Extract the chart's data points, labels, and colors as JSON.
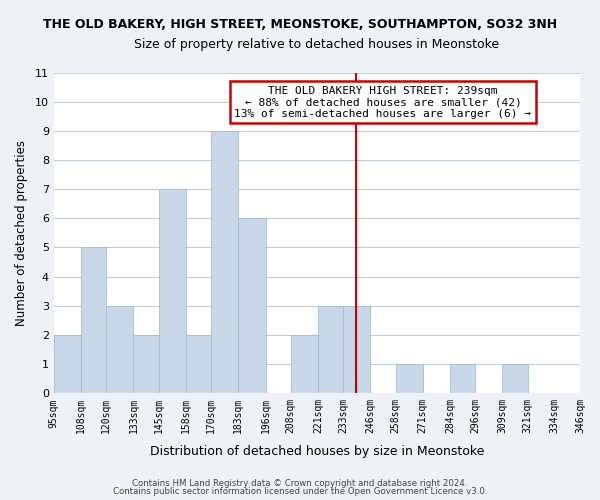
{
  "title": "THE OLD BAKERY, HIGH STREET, MEONSTOKE, SOUTHAMPTON, SO32 3NH",
  "subtitle": "Size of property relative to detached houses in Meonstoke",
  "xlabel": "Distribution of detached houses by size in Meonstoke",
  "ylabel": "Number of detached properties",
  "bin_edges": [
    95,
    108,
    120,
    133,
    145,
    158,
    170,
    183,
    196,
    208,
    221,
    233,
    246,
    258,
    271,
    284,
    296,
    309,
    321,
    334,
    346
  ],
  "bin_counts": [
    2,
    5,
    3,
    2,
    7,
    2,
    9,
    6,
    0,
    2,
    3,
    3,
    0,
    1,
    0,
    1,
    0,
    1,
    0,
    0
  ],
  "bar_color": "#c8d8e8",
  "bar_edge_color": "#aabbcc",
  "reference_line_x": 239,
  "reference_line_color": "#cc0000",
  "ylim": [
    0,
    11
  ],
  "yticks": [
    0,
    1,
    2,
    3,
    4,
    5,
    6,
    7,
    8,
    9,
    10,
    11
  ],
  "annotation_title": "THE OLD BAKERY HIGH STREET: 239sqm",
  "annotation_line1": "← 88% of detached houses are smaller (42)",
  "annotation_line2": "13% of semi-detached houses are larger (6) →",
  "footer_line1": "Contains HM Land Registry data © Crown copyright and database right 2024.",
  "footer_line2": "Contains public sector information licensed under the Open Government Licence v3.0.",
  "bg_color": "#eef2f7",
  "plot_bg_color": "#ffffff",
  "grid_color": "#c0ccd8"
}
